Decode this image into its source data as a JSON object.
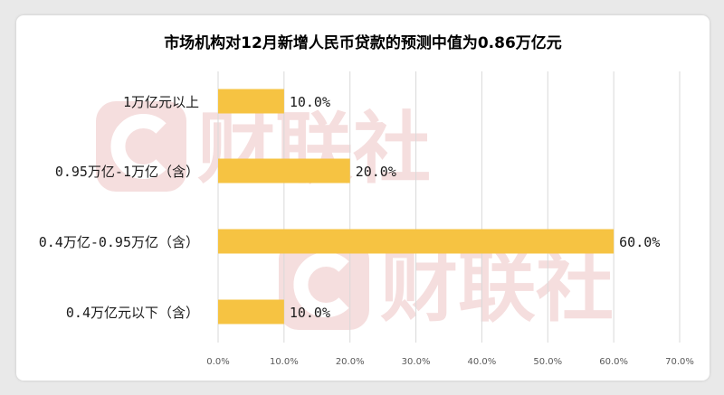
{
  "chart_data": {
    "type": "bar",
    "orientation": "horizontal",
    "title": "市场机构对12月新增人民币贷款的预测中值为0.86万亿元",
    "categories": [
      "1万亿元以上",
      "0.95万亿-1万亿（含）",
      "0.4万亿-0.95万亿（含）",
      "0.4万亿元以下（含）"
    ],
    "values": [
      10.0,
      20.0,
      60.0,
      10.0
    ],
    "data_labels": [
      "10.0%",
      "20.0%",
      "60.0%",
      "10.0%"
    ],
    "x_ticks": [
      "0.0%",
      "10.0%",
      "20.0%",
      "30.0%",
      "40.0%",
      "50.0%",
      "60.0%",
      "70.0%"
    ],
    "xlim": [
      0,
      70
    ],
    "grid": true,
    "legend": "none",
    "watermark": "财联社",
    "colors": {
      "bar": "#f6c342",
      "grid": "#d9d9d9",
      "watermark": "#f5dede",
      "text": "#1a1a1a",
      "tick": "#595959"
    }
  }
}
